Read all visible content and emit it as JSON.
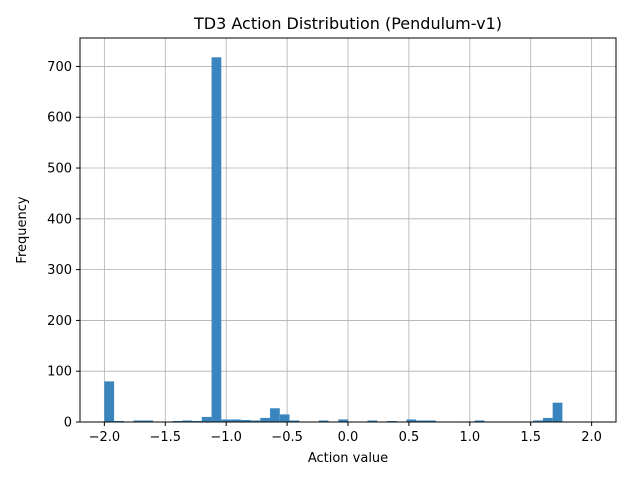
{
  "chart_data": {
    "type": "bar",
    "title": "TD3 Action Distribution (Pendulum-v1)",
    "xlabel": "Action value",
    "ylabel": "Frequency",
    "xlim": [
      -2.2,
      2.2
    ],
    "ylim": [
      0,
      756
    ],
    "x_ticks": [
      -2.0,
      -1.5,
      -1.0,
      -0.5,
      0.0,
      0.5,
      1.0,
      1.5,
      2.0
    ],
    "x_tick_labels": [
      "−2.0",
      "−1.5",
      "−1.0",
      "−0.5",
      "0.0",
      "0.5",
      "1.0",
      "1.5",
      "2.0"
    ],
    "y_ticks": [
      0,
      100,
      200,
      300,
      400,
      500,
      600,
      700
    ],
    "y_tick_labels": [
      "0",
      "100",
      "200",
      "300",
      "400",
      "500",
      "600",
      "700"
    ],
    "grid": true,
    "bar_color": "#3a85bd",
    "bin_edges_start": -2.0,
    "bin_width": 0.08,
    "values": [
      80,
      2,
      0,
      3,
      3,
      1,
      0,
      2,
      3,
      2,
      10,
      718,
      5,
      5,
      4,
      3,
      8,
      27,
      15,
      3,
      1,
      1,
      3,
      1,
      5,
      0,
      0,
      3,
      0,
      2,
      1,
      5,
      3,
      3,
      1,
      0,
      1,
      1,
      3,
      1,
      1,
      1,
      1,
      0,
      3,
      8,
      38,
      0,
      0,
      0
    ]
  }
}
